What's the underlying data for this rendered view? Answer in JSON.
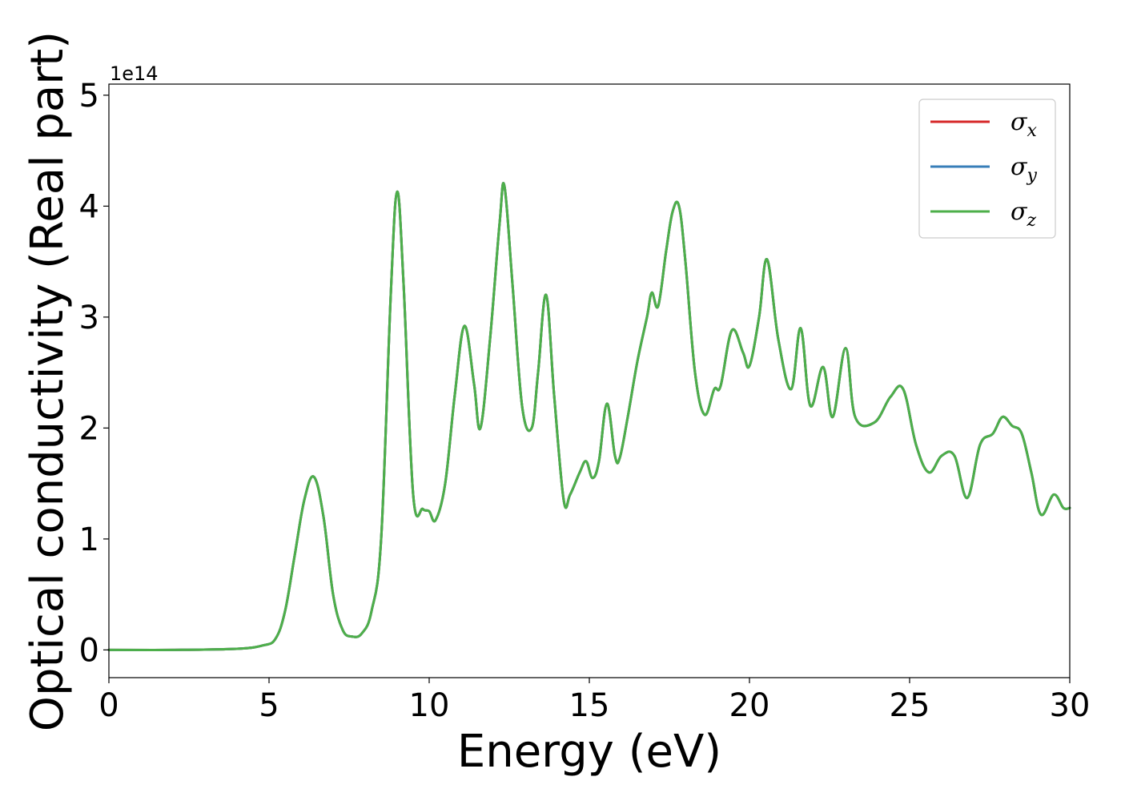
{
  "chart_data": {
    "type": "line",
    "xlabel": "Energy (eV)",
    "ylabel": "Optical conductivity (Real part)",
    "y_offset_text": "1e14",
    "xlim": [
      0,
      30
    ],
    "ylim": [
      -0.25,
      5.1
    ],
    "x_ticks": [
      0,
      5,
      10,
      15,
      20,
      25,
      30
    ],
    "y_ticks": [
      0,
      1,
      2,
      3,
      4,
      5
    ],
    "grid": false,
    "legend_position": "top-right",
    "series": [
      {
        "name": "σ",
        "subscript": "x",
        "color": "#d62728"
      },
      {
        "name": "σ",
        "subscript": "y",
        "color": "#377eb8"
      },
      {
        "name": "σ",
        "subscript": "z",
        "color": "#4daf4a"
      }
    ],
    "x": [
      0,
      2,
      4,
      4.8,
      5.2,
      5.5,
      5.8,
      6.1,
      6.4,
      6.7,
      7.0,
      7.3,
      7.6,
      7.9,
      8.2,
      8.5,
      8.8,
      9.0,
      9.2,
      9.5,
      9.8,
      10.0,
      10.2,
      10.5,
      10.8,
      11.1,
      11.4,
      11.6,
      11.9,
      12.2,
      12.35,
      12.6,
      12.9,
      13.2,
      13.4,
      13.65,
      13.9,
      14.2,
      14.4,
      14.7,
      14.9,
      15.1,
      15.3,
      15.55,
      15.8,
      15.95,
      16.2,
      16.5,
      16.8,
      16.95,
      17.15,
      17.4,
      17.6,
      17.8,
      18.0,
      18.3,
      18.6,
      18.9,
      19.1,
      19.45,
      19.8,
      20.0,
      20.3,
      20.55,
      20.9,
      21.3,
      21.6,
      21.9,
      22.3,
      22.6,
      23.0,
      23.3,
      23.9,
      24.4,
      24.8,
      25.2,
      25.6,
      26.0,
      26.4,
      26.8,
      27.2,
      27.6,
      27.9,
      28.2,
      28.5,
      28.8,
      29.1,
      29.5,
      29.8,
      30
    ],
    "values": [
      0.0,
      0.0,
      0.01,
      0.04,
      0.1,
      0.35,
      0.85,
      1.35,
      1.56,
      1.2,
      0.5,
      0.18,
      0.12,
      0.15,
      0.35,
      1.0,
      3.2,
      4.13,
      3.3,
      1.4,
      1.27,
      1.25,
      1.17,
      1.5,
      2.3,
      2.92,
      2.4,
      2.0,
      2.8,
      3.85,
      4.18,
      3.3,
      2.2,
      2.0,
      2.5,
      3.2,
      2.3,
      1.35,
      1.4,
      1.6,
      1.7,
      1.55,
      1.7,
      2.22,
      1.75,
      1.73,
      2.1,
      2.6,
      3.0,
      3.22,
      3.1,
      3.6,
      3.95,
      4.0,
      3.5,
      2.5,
      2.12,
      2.35,
      2.38,
      2.88,
      2.68,
      2.56,
      3.0,
      3.52,
      2.8,
      2.35,
      2.9,
      2.2,
      2.55,
      2.1,
      2.72,
      2.1,
      2.05,
      2.28,
      2.35,
      1.85,
      1.6,
      1.75,
      1.75,
      1.37,
      1.85,
      1.95,
      2.1,
      2.02,
      1.95,
      1.6,
      1.22,
      1.4,
      1.28,
      1.28
    ]
  }
}
